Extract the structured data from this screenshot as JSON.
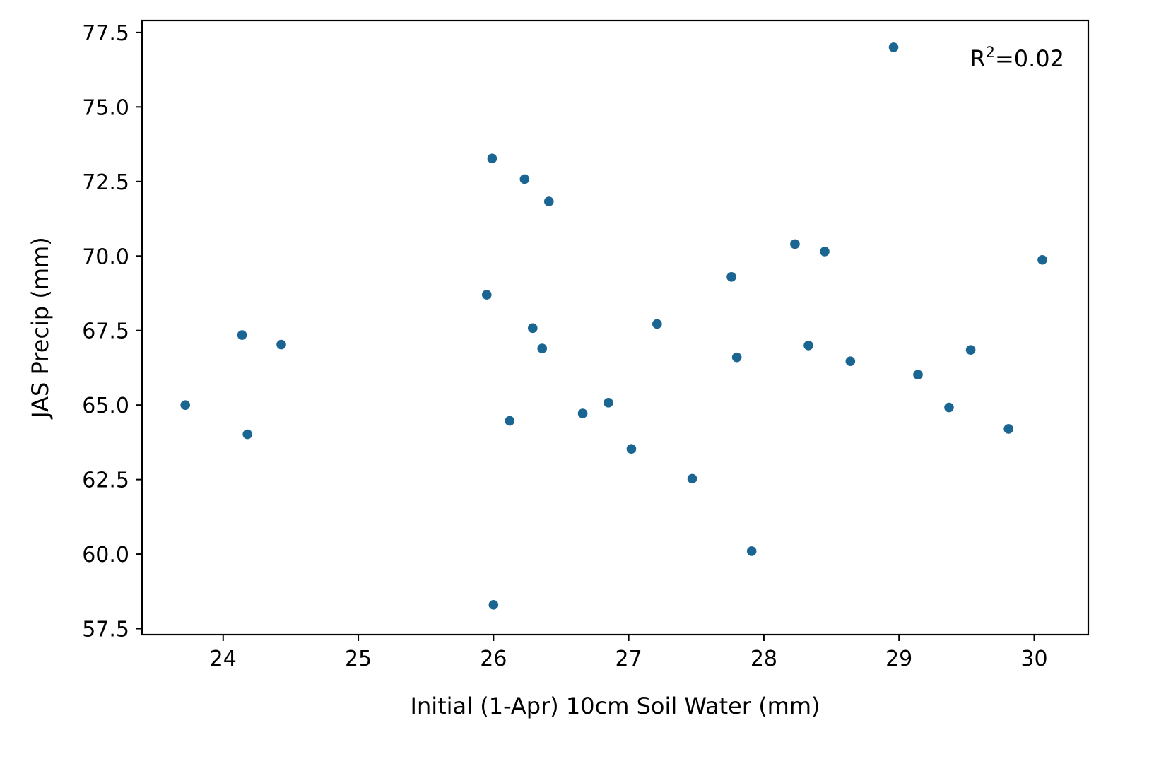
{
  "chart_data": {
    "type": "scatter",
    "xlabel": "Initial (1-Apr) 10cm Soil Water (mm)",
    "ylabel": "JAS Precip (mm)",
    "xlim": [
      23.4,
      30.4
    ],
    "ylim": [
      57.3,
      77.9
    ],
    "xticks": [
      24,
      25,
      26,
      27,
      28,
      29,
      30
    ],
    "yticks": [
      57.5,
      60.0,
      62.5,
      65.0,
      67.5,
      70.0,
      72.5,
      75.0,
      77.5
    ],
    "xtick_labels": [
      "24",
      "25",
      "26",
      "27",
      "28",
      "29",
      "30"
    ],
    "ytick_labels": [
      "57.5",
      "60.0",
      "62.5",
      "65.0",
      "67.5",
      "70.0",
      "72.5",
      "75.0",
      "77.5"
    ],
    "grid": false,
    "marker_color": "#1a6591",
    "annotation": {
      "base": "R",
      "sup": "2",
      "rest": "=0.02",
      "position": "top-right"
    },
    "points": [
      {
        "x": 23.72,
        "y": 65.0
      },
      {
        "x": 24.14,
        "y": 67.35
      },
      {
        "x": 24.18,
        "y": 64.02
      },
      {
        "x": 24.43,
        "y": 67.03
      },
      {
        "x": 25.95,
        "y": 68.7
      },
      {
        "x": 25.99,
        "y": 73.27
      },
      {
        "x": 26.0,
        "y": 58.3
      },
      {
        "x": 26.12,
        "y": 64.47
      },
      {
        "x": 26.23,
        "y": 72.58
      },
      {
        "x": 26.29,
        "y": 67.58
      },
      {
        "x": 26.36,
        "y": 66.9
      },
      {
        "x": 26.41,
        "y": 71.83
      },
      {
        "x": 26.66,
        "y": 64.72
      },
      {
        "x": 26.85,
        "y": 65.08
      },
      {
        "x": 27.02,
        "y": 63.53
      },
      {
        "x": 27.21,
        "y": 67.72
      },
      {
        "x": 27.47,
        "y": 62.53
      },
      {
        "x": 27.76,
        "y": 69.3
      },
      {
        "x": 27.8,
        "y": 66.6
      },
      {
        "x": 27.91,
        "y": 60.1
      },
      {
        "x": 28.23,
        "y": 70.4
      },
      {
        "x": 28.33,
        "y": 67.0
      },
      {
        "x": 28.45,
        "y": 70.15
      },
      {
        "x": 28.64,
        "y": 66.47
      },
      {
        "x": 28.96,
        "y": 77.0
      },
      {
        "x": 29.14,
        "y": 66.02
      },
      {
        "x": 29.37,
        "y": 64.92
      },
      {
        "x": 29.53,
        "y": 66.85
      },
      {
        "x": 29.81,
        "y": 64.2
      },
      {
        "x": 30.06,
        "y": 69.87
      }
    ]
  }
}
